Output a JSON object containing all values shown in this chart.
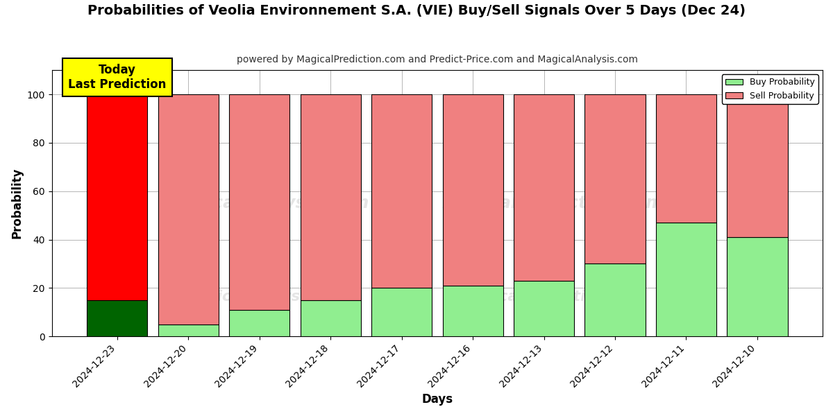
{
  "title": "Probabilities of Veolia Environnement S.A. (VIE) Buy/Sell Signals Over 5 Days (Dec 24)",
  "subtitle": "powered by MagicalPrediction.com and Predict-Price.com and MagicalAnalysis.com",
  "xlabel": "Days",
  "ylabel": "Probability",
  "categories": [
    "2024-12-23",
    "2024-12-20",
    "2024-12-19",
    "2024-12-18",
    "2024-12-17",
    "2024-12-16",
    "2024-12-13",
    "2024-12-12",
    "2024-12-11",
    "2024-12-10"
  ],
  "buy_values": [
    15,
    5,
    11,
    15,
    20,
    21,
    23,
    30,
    47,
    41
  ],
  "sell_values": [
    85,
    95,
    89,
    85,
    80,
    79,
    77,
    70,
    53,
    59
  ],
  "buy_color_today": "#006400",
  "sell_color_today": "#ff0000",
  "buy_color_normal": "#90ee90",
  "sell_color_normal": "#f08080",
  "today_bar_index": 0,
  "bar_edgecolor": "#000000",
  "bar_linewidth": 0.8,
  "ylim_max": 110,
  "yticks": [
    0,
    20,
    40,
    60,
    80,
    100
  ],
  "dashed_line_y": 110,
  "legend_buy_label": "Buy Probability",
  "legend_sell_label": "Sell Probability",
  "today_annotation_text": "Today\nLast Prediction",
  "today_annotation_bg": "#ffff00",
  "watermark_lines": [
    "MagicalAnalysis.com",
    "MagicalPrediction.com"
  ],
  "figsize": [
    12,
    6
  ],
  "dpi": 100,
  "background_color": "#ffffff",
  "grid_color": "#aaaaaa",
  "title_fontsize": 14,
  "subtitle_fontsize": 10,
  "axis_label_fontsize": 12,
  "tick_label_fontsize": 10,
  "bar_width": 0.85
}
